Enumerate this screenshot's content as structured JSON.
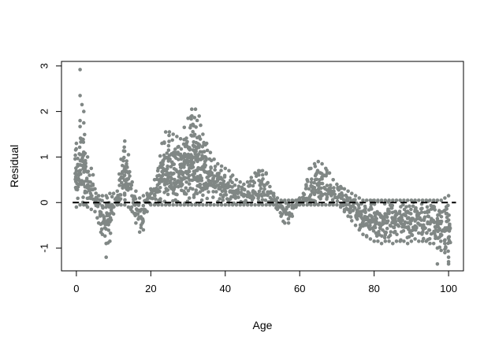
{
  "chart_data": {
    "type": "scatter",
    "title": "",
    "xlabel": "Age",
    "ylabel": "Residual",
    "xlim": [
      -4,
      104
    ],
    "ylim": [
      -1.5,
      3.1
    ],
    "x_ticks": [
      0,
      20,
      40,
      60,
      80,
      100
    ],
    "x_tick_labels": [
      "0",
      "20",
      "40",
      "60",
      "80",
      "100"
    ],
    "y_ticks": [
      -1,
      0,
      1,
      2,
      3
    ],
    "y_tick_labels": [
      "-1",
      "0",
      "1",
      "2",
      "3"
    ],
    "grid": false,
    "legend": null,
    "point_color": "#808785",
    "reference_line": {
      "y": 0,
      "style": "dashed",
      "color": "#000000"
    },
    "envelope_note": "Points are spread between the per-age lower and upper residual values below (each point = one observation at that age).",
    "envelope": {
      "x": [
        0,
        1,
        2,
        3,
        4,
        5,
        6,
        7,
        8,
        9,
        10,
        11,
        12,
        13,
        14,
        15,
        16,
        17,
        18,
        19,
        20,
        21,
        22,
        23,
        24,
        25,
        26,
        27,
        28,
        29,
        30,
        31,
        32,
        33,
        34,
        35,
        36,
        37,
        38,
        39,
        40,
        41,
        42,
        43,
        44,
        45,
        46,
        47,
        48,
        49,
        50,
        51,
        52,
        53,
        54,
        55,
        56,
        57,
        58,
        59,
        60,
        61,
        62,
        63,
        64,
        65,
        66,
        67,
        68,
        69,
        70,
        71,
        72,
        73,
        74,
        75,
        76,
        77,
        78,
        79,
        80,
        81,
        82,
        83,
        84,
        85,
        86,
        87,
        88,
        89,
        90,
        91,
        92,
        93,
        94,
        95,
        96,
        97,
        98,
        99,
        100
      ],
      "lower": [
        -0.1,
        -0.05,
        -0.05,
        -0.1,
        -0.15,
        -0.2,
        -0.45,
        -0.7,
        -0.9,
        -0.85,
        -0.25,
        -0.05,
        -0.05,
        -0.05,
        -0.1,
        -0.2,
        -0.45,
        -0.65,
        -0.6,
        -0.2,
        -0.05,
        -0.05,
        -0.05,
        -0.05,
        -0.05,
        -0.05,
        -0.05,
        -0.05,
        -0.05,
        -0.05,
        -0.05,
        -0.05,
        -0.05,
        -0.05,
        -0.05,
        -0.05,
        -0.05,
        -0.05,
        -0.05,
        -0.05,
        -0.05,
        -0.05,
        -0.05,
        -0.05,
        -0.05,
        -0.05,
        -0.05,
        -0.05,
        -0.05,
        -0.05,
        -0.05,
        -0.05,
        -0.05,
        -0.05,
        -0.15,
        -0.3,
        -0.45,
        -0.45,
        -0.3,
        -0.1,
        -0.05,
        -0.05,
        -0.05,
        -0.05,
        -0.05,
        -0.05,
        -0.05,
        -0.05,
        -0.05,
        -0.05,
        -0.05,
        -0.1,
        -0.2,
        -0.3,
        -0.4,
        -0.5,
        -0.6,
        -0.7,
        -0.75,
        -0.8,
        -0.85,
        -0.85,
        -0.9,
        -0.85,
        -0.85,
        -0.9,
        -0.85,
        -0.85,
        -0.85,
        -0.9,
        -0.85,
        -0.8,
        -0.85,
        -0.85,
        -0.85,
        -0.9,
        -0.9,
        -1.0,
        -1.05,
        -1.1,
        -1.2
      ],
      "upper": [
        1.3,
        1.8,
        1.75,
        1.0,
        0.75,
        0.3,
        0.15,
        0.15,
        0.15,
        0.2,
        0.2,
        0.25,
        0.95,
        1.35,
        1.05,
        0.45,
        0.25,
        0.1,
        0.15,
        0.2,
        0.3,
        0.5,
        0.75,
        1.3,
        1.55,
        1.55,
        1.5,
        1.45,
        1.4,
        1.65,
        1.85,
        2.05,
        2.05,
        1.9,
        1.5,
        1.3,
        1.1,
        0.95,
        0.85,
        0.8,
        0.75,
        0.7,
        0.6,
        0.5,
        0.45,
        0.4,
        0.45,
        0.55,
        0.65,
        0.7,
        0.7,
        0.65,
        0.35,
        0.2,
        0.1,
        0.05,
        0.05,
        0.05,
        0.05,
        0.05,
        0.1,
        0.2,
        0.5,
        0.75,
        0.85,
        0.9,
        0.85,
        0.75,
        0.65,
        0.5,
        0.4,
        0.35,
        0.3,
        0.25,
        0.2,
        0.15,
        0.1,
        0.05,
        0.05,
        0.05,
        0.05,
        0.05,
        0.05,
        0.05,
        0.05,
        0.05,
        0.05,
        0.05,
        0.05,
        0.05,
        0.05,
        0.05,
        0.05,
        0.05,
        0.05,
        0.05,
        0.05,
        0.05,
        0.05,
        0.1,
        0.15
      ]
    },
    "outliers": [
      {
        "x": 1,
        "y": 2.92
      },
      {
        "x": 1,
        "y": 2.35
      },
      {
        "x": 1.5,
        "y": 2.15
      },
      {
        "x": 2,
        "y": 2.0
      },
      {
        "x": 8,
        "y": -1.2
      },
      {
        "x": 97,
        "y": -1.35
      },
      {
        "x": 100,
        "y": -1.3
      },
      {
        "x": 100,
        "y": -1.35
      }
    ]
  }
}
